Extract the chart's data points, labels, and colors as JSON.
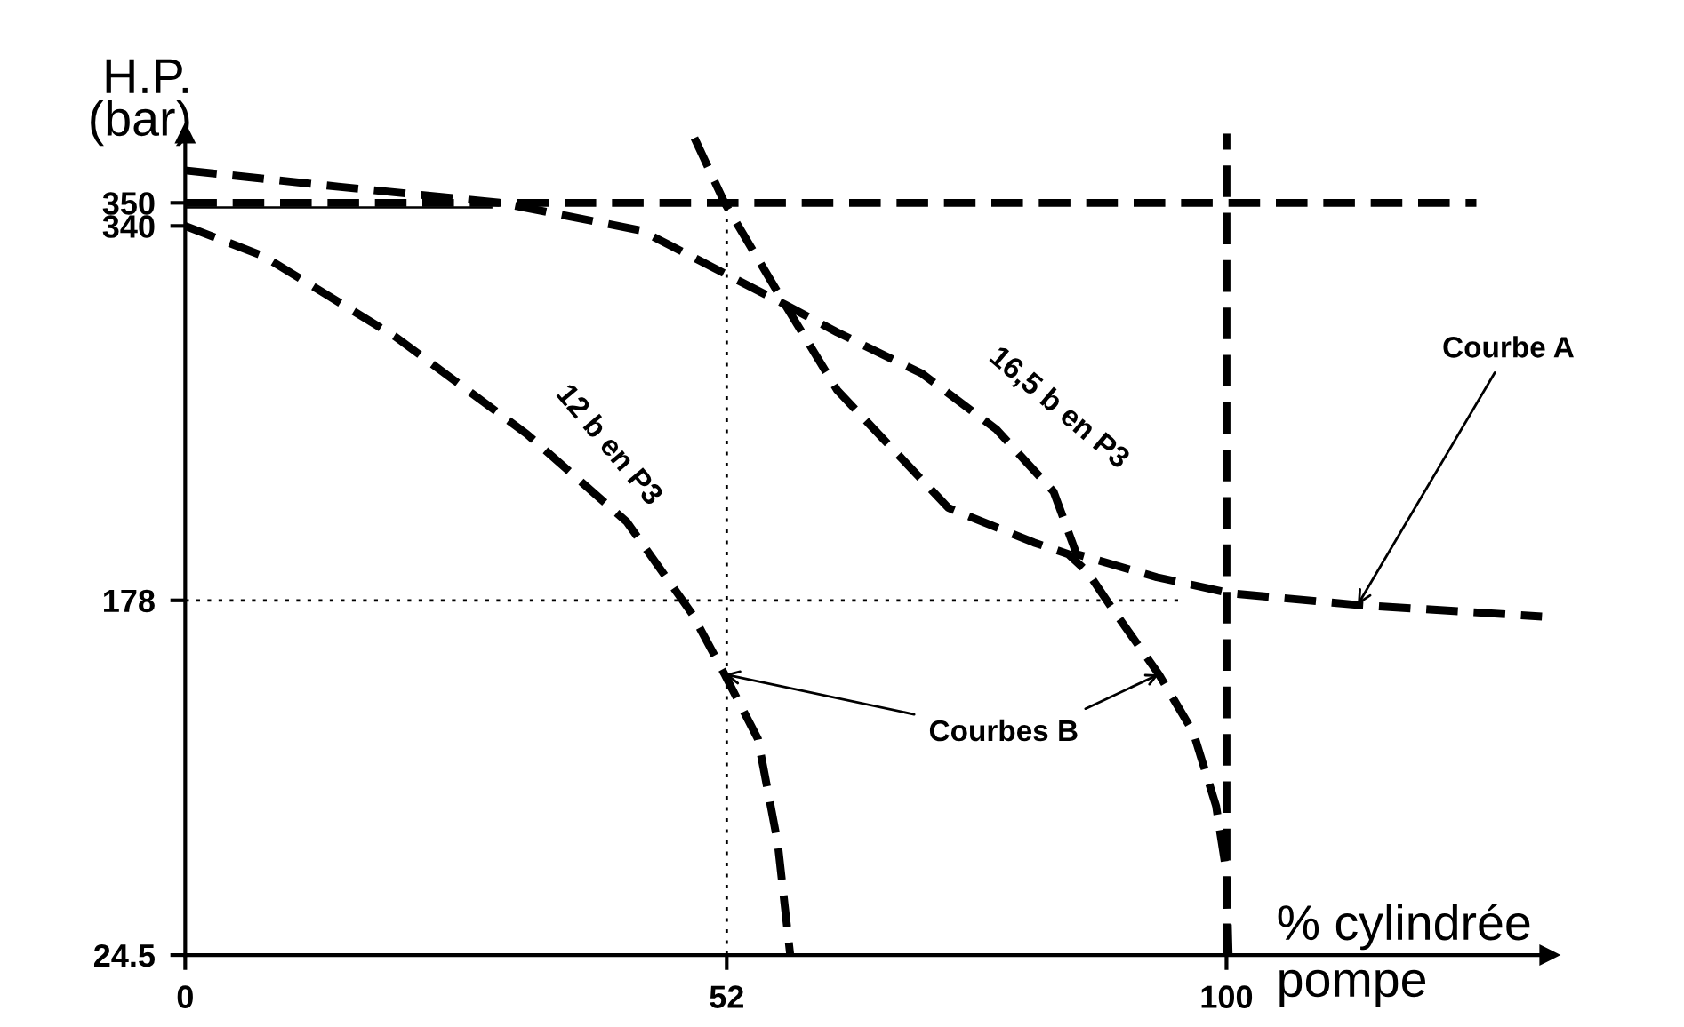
{
  "chart_data": {
    "type": "line",
    "xlabel": "% cylindrée\npompe",
    "ylabel": "H.P.\n(bar)",
    "xlim": [
      0,
      131
    ],
    "ylim": [
      24.5,
      380
    ],
    "xticks": [
      0,
      52,
      100
    ],
    "yticks": [
      24.5,
      178,
      340,
      350
    ],
    "grid": false,
    "marker": "none",
    "series": [
      {
        "name": null,
        "color": "#000000",
        "line_style": "dashed",
        "x": [
          0,
          14.7,
          30.3,
          43.8,
          57.6,
          62.6,
          70.8,
          77.9,
          83.4,
          85.6,
          93.3,
          100.5,
          112.6,
          130.3
        ],
        "values": [
          364,
          357,
          350,
          338,
          306,
          294,
          276,
          252,
          225,
          198,
          188,
          181,
          176,
          171
        ]
      },
      {
        "name": null,
        "color": "#000000",
        "line_style": "dashed",
        "x": [
          48.9,
          51.8,
          57.6,
          62.6,
          73.3,
          81.5,
          84.8,
          86.7,
          89.1,
          93.5,
          96.8,
          99,
          100,
          100.2
        ],
        "values": [
          378,
          350,
          306,
          269,
          218,
          203,
          198,
          190,
          174,
          146,
          121,
          89,
          60,
          24.5
        ]
      },
      {
        "name": null,
        "color": "#000000",
        "line_style": "dashed",
        "x": [
          0,
          7.5,
          20.2,
          32.8,
          42.4,
          48.7,
          51.8,
          55,
          56.9,
          58.1
        ],
        "values": [
          340,
          327,
          292,
          250,
          212,
          172,
          146,
          118,
          73,
          24.5
        ]
      },
      {
        "name": null,
        "color": "#000000",
        "line_style": "dashed",
        "x": [
          0,
          124
        ],
        "values": [
          350,
          350
        ]
      },
      {
        "name": null,
        "color": "#000000",
        "line_style": "solid",
        "x": [
          0,
          29.4
        ],
        "values": [
          348,
          348
        ]
      },
      {
        "name": null,
        "color": "#000000",
        "line_style": "dotted",
        "x": [
          0,
          95.5
        ],
        "values": [
          178,
          178
        ]
      },
      {
        "name": null,
        "color": "#000000",
        "line_style": "dotted",
        "x": [
          52,
          52
        ],
        "values": [
          24.5,
          350
        ]
      }
    ],
    "ref_lines": [
      {
        "axis": "x",
        "value": 100,
        "label": null,
        "color": "#000000",
        "line_style": "dashed"
      }
    ],
    "annotations": [
      "12 b en P3",
      "16,5 b en P3",
      {
        "text": "Courbe A",
        "x": 112.6,
        "y": 176
      },
      {
        "text": "Courbes B",
        "x": 51.8,
        "y": 146
      }
    ]
  }
}
